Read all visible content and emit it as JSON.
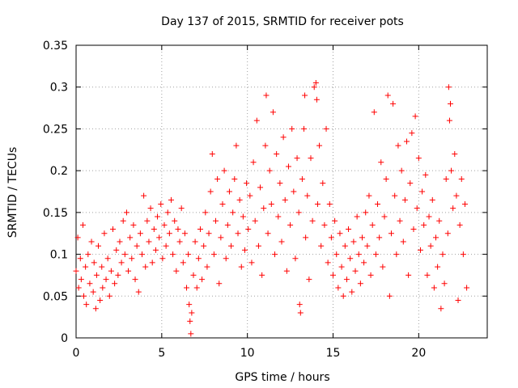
{
  "chart_data": {
    "type": "scatter",
    "title": "Day 137 of 2015, SRMTID for receiver pots",
    "xlabel": "GPS time / hours",
    "ylabel": "SRMTID / TECUs",
    "xlim": [
      0,
      24
    ],
    "ylim": [
      0,
      0.35
    ],
    "xticks": [
      0,
      5,
      10,
      15,
      20
    ],
    "xtick_labels": [
      "0",
      "5",
      "10",
      "15",
      "20"
    ],
    "yticks": [
      0,
      0.05,
      0.1,
      0.15,
      0.2,
      0.25,
      0.3,
      0.35
    ],
    "ytick_labels": [
      "0",
      "0.05",
      "0.1",
      "0.15",
      "0.2",
      "0.25",
      "0.3",
      "0.35"
    ],
    "grid": true,
    "marker": "plus",
    "color": "#ff0000",
    "series": [
      {
        "name": "pots",
        "points": [
          [
            0.0,
            0.08
          ],
          [
            0.1,
            0.12
          ],
          [
            0.15,
            0.06
          ],
          [
            0.25,
            0.095
          ],
          [
            0.3,
            0.07
          ],
          [
            0.4,
            0.135
          ],
          [
            0.45,
            0.05
          ],
          [
            0.55,
            0.085
          ],
          [
            0.6,
            0.04
          ],
          [
            0.7,
            0.1
          ],
          [
            0.8,
            0.065
          ],
          [
            0.9,
            0.115
          ],
          [
            1.0,
            0.055
          ],
          [
            1.05,
            0.09
          ],
          [
            1.15,
            0.035
          ],
          [
            1.2,
            0.075
          ],
          [
            1.3,
            0.11
          ],
          [
            1.4,
            0.045
          ],
          [
            1.5,
            0.085
          ],
          [
            1.55,
            0.06
          ],
          [
            1.65,
            0.125
          ],
          [
            1.75,
            0.07
          ],
          [
            1.85,
            0.095
          ],
          [
            1.95,
            0.05
          ],
          [
            2.05,
            0.08
          ],
          [
            2.15,
            0.13
          ],
          [
            2.25,
            0.065
          ],
          [
            2.35,
            0.105
          ],
          [
            2.45,
            0.075
          ],
          [
            2.55,
            0.115
          ],
          [
            2.65,
            0.09
          ],
          [
            2.75,
            0.14
          ],
          [
            2.85,
            0.1
          ],
          [
            2.95,
            0.15
          ],
          [
            3.05,
            0.08
          ],
          [
            3.15,
            0.12
          ],
          [
            3.25,
            0.095
          ],
          [
            3.35,
            0.135
          ],
          [
            3.45,
            0.07
          ],
          [
            3.55,
            0.11
          ],
          [
            3.65,
            0.055
          ],
          [
            3.75,
            0.125
          ],
          [
            3.85,
            0.1
          ],
          [
            3.95,
            0.17
          ],
          [
            4.05,
            0.085
          ],
          [
            4.15,
            0.14
          ],
          [
            4.25,
            0.115
          ],
          [
            4.35,
            0.155
          ],
          [
            4.45,
            0.09
          ],
          [
            4.55,
            0.13
          ],
          [
            4.65,
            0.105
          ],
          [
            4.75,
            0.145
          ],
          [
            4.85,
            0.12
          ],
          [
            4.95,
            0.16
          ],
          [
            5.05,
            0.095
          ],
          [
            5.15,
            0.135
          ],
          [
            5.25,
            0.11
          ],
          [
            5.35,
            0.15
          ],
          [
            5.45,
            0.125
          ],
          [
            5.55,
            0.165
          ],
          [
            5.65,
            0.1
          ],
          [
            5.75,
            0.14
          ],
          [
            5.85,
            0.08
          ],
          [
            5.95,
            0.13
          ],
          [
            6.05,
            0.115
          ],
          [
            6.15,
            0.155
          ],
          [
            6.25,
            0.09
          ],
          [
            6.35,
            0.125
          ],
          [
            6.45,
            0.06
          ],
          [
            6.55,
            0.1
          ],
          [
            6.6,
            0.04
          ],
          [
            6.65,
            0.02
          ],
          [
            6.7,
            0.005
          ],
          [
            6.75,
            0.03
          ],
          [
            6.85,
            0.075
          ],
          [
            6.95,
            0.115
          ],
          [
            7.05,
            0.06
          ],
          [
            7.15,
            0.095
          ],
          [
            7.25,
            0.13
          ],
          [
            7.35,
            0.07
          ],
          [
            7.45,
            0.11
          ],
          [
            7.55,
            0.15
          ],
          [
            7.65,
            0.085
          ],
          [
            7.75,
            0.125
          ],
          [
            7.85,
            0.175
          ],
          [
            7.95,
            0.22
          ],
          [
            8.05,
            0.1
          ],
          [
            8.15,
            0.14
          ],
          [
            8.25,
            0.19
          ],
          [
            8.35,
            0.065
          ],
          [
            8.45,
            0.12
          ],
          [
            8.55,
            0.16
          ],
          [
            8.65,
            0.2
          ],
          [
            8.75,
            0.095
          ],
          [
            8.85,
            0.135
          ],
          [
            8.95,
            0.175
          ],
          [
            9.05,
            0.11
          ],
          [
            9.15,
            0.15
          ],
          [
            9.25,
            0.19
          ],
          [
            9.35,
            0.23
          ],
          [
            9.45,
            0.125
          ],
          [
            9.55,
            0.165
          ],
          [
            9.65,
            0.085
          ],
          [
            9.75,
            0.145
          ],
          [
            9.85,
            0.105
          ],
          [
            9.95,
            0.185
          ],
          [
            10.05,
            0.13
          ],
          [
            10.15,
            0.17
          ],
          [
            10.25,
            0.09
          ],
          [
            10.35,
            0.21
          ],
          [
            10.45,
            0.14
          ],
          [
            10.55,
            0.26
          ],
          [
            10.65,
            0.11
          ],
          [
            10.75,
            0.18
          ],
          [
            10.85,
            0.075
          ],
          [
            10.95,
            0.155
          ],
          [
            11.05,
            0.23
          ],
          [
            11.1,
            0.29
          ],
          [
            11.2,
            0.125
          ],
          [
            11.3,
            0.2
          ],
          [
            11.4,
            0.16
          ],
          [
            11.5,
            0.27
          ],
          [
            11.6,
            0.1
          ],
          [
            11.7,
            0.22
          ],
          [
            11.8,
            0.145
          ],
          [
            11.9,
            0.185
          ],
          [
            12.0,
            0.115
          ],
          [
            12.1,
            0.24
          ],
          [
            12.2,
            0.165
          ],
          [
            12.3,
            0.08
          ],
          [
            12.4,
            0.205
          ],
          [
            12.5,
            0.135
          ],
          [
            12.6,
            0.25
          ],
          [
            12.7,
            0.175
          ],
          [
            12.8,
            0.095
          ],
          [
            12.9,
            0.215
          ],
          [
            13.0,
            0.15
          ],
          [
            13.05,
            0.04
          ],
          [
            13.1,
            0.03
          ],
          [
            13.2,
            0.19
          ],
          [
            13.3,
            0.25
          ],
          [
            13.35,
            0.29
          ],
          [
            13.4,
            0.12
          ],
          [
            13.5,
            0.17
          ],
          [
            13.6,
            0.07
          ],
          [
            13.7,
            0.215
          ],
          [
            13.8,
            0.14
          ],
          [
            13.9,
            0.3
          ],
          [
            14.0,
            0.305
          ],
          [
            14.05,
            0.285
          ],
          [
            14.1,
            0.16
          ],
          [
            14.2,
            0.23
          ],
          [
            14.3,
            0.11
          ],
          [
            14.4,
            0.185
          ],
          [
            14.5,
            0.135
          ],
          [
            14.6,
            0.25
          ],
          [
            14.7,
            0.09
          ],
          [
            14.8,
            0.16
          ],
          [
            14.9,
            0.12
          ],
          [
            15.0,
            0.075
          ],
          [
            15.1,
            0.14
          ],
          [
            15.2,
            0.1
          ],
          [
            15.3,
            0.06
          ],
          [
            15.4,
            0.125
          ],
          [
            15.5,
            0.085
          ],
          [
            15.6,
            0.05
          ],
          [
            15.7,
            0.11
          ],
          [
            15.8,
            0.07
          ],
          [
            15.9,
            0.13
          ],
          [
            16.0,
            0.095
          ],
          [
            16.1,
            0.055
          ],
          [
            16.2,
            0.115
          ],
          [
            16.3,
            0.08
          ],
          [
            16.4,
            0.145
          ],
          [
            16.5,
            0.1
          ],
          [
            16.6,
            0.065
          ],
          [
            16.7,
            0.12
          ],
          [
            16.8,
            0.09
          ],
          [
            16.9,
            0.15
          ],
          [
            17.0,
            0.11
          ],
          [
            17.1,
            0.17
          ],
          [
            17.2,
            0.075
          ],
          [
            17.3,
            0.135
          ],
          [
            17.4,
            0.27
          ],
          [
            17.5,
            0.1
          ],
          [
            17.6,
            0.16
          ],
          [
            17.7,
            0.12
          ],
          [
            17.8,
            0.21
          ],
          [
            17.9,
            0.085
          ],
          [
            18.0,
            0.145
          ],
          [
            18.1,
            0.19
          ],
          [
            18.2,
            0.29
          ],
          [
            18.3,
            0.05
          ],
          [
            18.4,
            0.125
          ],
          [
            18.5,
            0.28
          ],
          [
            18.6,
            0.17
          ],
          [
            18.7,
            0.1
          ],
          [
            18.8,
            0.23
          ],
          [
            18.9,
            0.14
          ],
          [
            19.0,
            0.2
          ],
          [
            19.1,
            0.115
          ],
          [
            19.2,
            0.165
          ],
          [
            19.3,
            0.235
          ],
          [
            19.4,
            0.075
          ],
          [
            19.5,
            0.185
          ],
          [
            19.6,
            0.245
          ],
          [
            19.7,
            0.13
          ],
          [
            19.8,
            0.265
          ],
          [
            19.9,
            0.155
          ],
          [
            20.0,
            0.215
          ],
          [
            20.1,
            0.105
          ],
          [
            20.2,
            0.175
          ],
          [
            20.3,
            0.135
          ],
          [
            20.4,
            0.195
          ],
          [
            20.5,
            0.075
          ],
          [
            20.6,
            0.145
          ],
          [
            20.7,
            0.11
          ],
          [
            20.8,
            0.165
          ],
          [
            20.9,
            0.06
          ],
          [
            21.0,
            0.12
          ],
          [
            21.1,
            0.085
          ],
          [
            21.2,
            0.14
          ],
          [
            21.3,
            0.035
          ],
          [
            21.4,
            0.1
          ],
          [
            21.5,
            0.065
          ],
          [
            21.6,
            0.19
          ],
          [
            21.7,
            0.125
          ],
          [
            21.75,
            0.3
          ],
          [
            21.8,
            0.26
          ],
          [
            21.85,
            0.28
          ],
          [
            21.9,
            0.2
          ],
          [
            22.0,
            0.155
          ],
          [
            22.1,
            0.22
          ],
          [
            22.2,
            0.17
          ],
          [
            22.3,
            0.045
          ],
          [
            22.4,
            0.135
          ],
          [
            22.5,
            0.19
          ],
          [
            22.6,
            0.1
          ],
          [
            22.7,
            0.16
          ],
          [
            22.8,
            0.06
          ]
        ]
      }
    ]
  }
}
